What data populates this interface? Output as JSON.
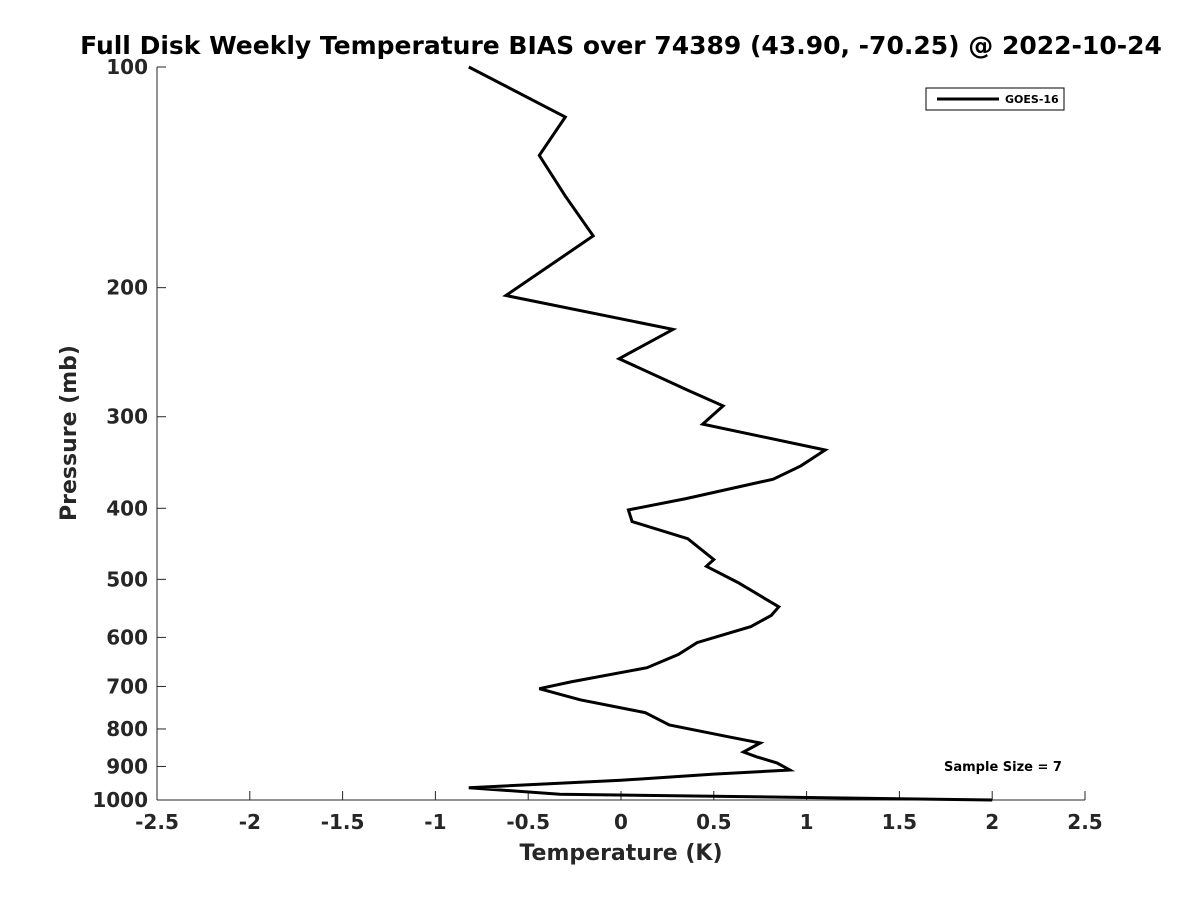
{
  "chart_data": {
    "type": "line",
    "title": "Full Disk Weekly Temperature BIAS over 74389 (43.90, -70.25) @ 2022-10-24",
    "xlabel": "Temperature (K)",
    "ylabel": "Pressure (mb)",
    "xlim": [
      -2.5,
      2.5
    ],
    "ylim": [
      100,
      1000
    ],
    "y_scale": "log",
    "y_reversed": true,
    "x_ticks": [
      "-2.5",
      "-2",
      "-1.5",
      "-1",
      "-0.5",
      "0",
      "0.5",
      "1",
      "1.5",
      "2",
      "2.5"
    ],
    "y_ticks": [
      "100",
      "200",
      "300",
      "400",
      "500",
      "600",
      "700",
      "800",
      "900",
      "1000"
    ],
    "grid": false,
    "legend_position": "top-right",
    "series": [
      {
        "name": "GOES-16",
        "color": "#000000",
        "x": [
          -0.82,
          -0.3,
          -0.44,
          -0.3,
          -0.15,
          -0.62,
          0.28,
          -0.01,
          0.36,
          0.55,
          0.44,
          1.1,
          0.97,
          0.82,
          0.35,
          0.04,
          0.06,
          0.36,
          0.5,
          0.46,
          0.63,
          0.85,
          0.81,
          0.7,
          0.41,
          0.31,
          0.14,
          -0.27,
          -0.44,
          -0.22,
          0.13,
          0.26,
          0.58,
          0.75,
          0.66,
          0.73,
          0.84,
          0.91,
          0.5,
          0.0,
          -0.82,
          -0.33,
          2.0
        ],
        "y": [
          100,
          117,
          132,
          150,
          170,
          205,
          228,
          250,
          276,
          290,
          307,
          333,
          350,
          365,
          388,
          402,
          417,
          440,
          470,
          480,
          505,
          545,
          560,
          580,
          610,
          633,
          660,
          690,
          705,
          730,
          760,
          790,
          820,
          836,
          860,
          873,
          890,
          910,
          922,
          940,
          962,
          982,
          1000
        ]
      }
    ],
    "annotations": [
      {
        "text": "Sample Size = 7"
      }
    ]
  }
}
